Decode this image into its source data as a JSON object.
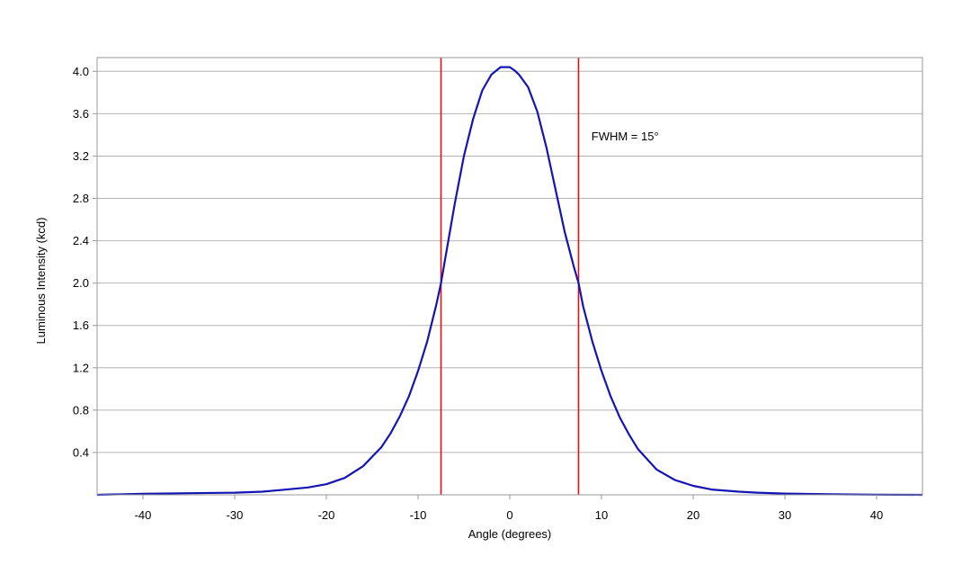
{
  "chart_data": {
    "type": "line",
    "title": "",
    "xlabel": "Angle (degrees)",
    "ylabel": "Luminous Intensity (kcd)",
    "xlim": [
      -45,
      45
    ],
    "ylim": [
      0,
      4.13
    ],
    "x_ticks": [
      -40,
      -30,
      -20,
      -10,
      0,
      10,
      20,
      30,
      40
    ],
    "x_tick_labels": [
      "-40",
      "-30",
      "-20",
      "-10",
      "0",
      "10",
      "20",
      "30",
      "40"
    ],
    "y_ticks": [
      0.4,
      0.8,
      1.2,
      1.6,
      2.0,
      2.4,
      2.8,
      3.2,
      3.6,
      4.0
    ],
    "y_tick_labels": [
      "0.4",
      "0.8",
      "1.2",
      "1.6",
      "2.0",
      "2.4",
      "2.8",
      "3.2",
      "3.6",
      "4.0"
    ],
    "grid": "horizontal",
    "legend": "none",
    "series": [
      {
        "color": "#1414b4",
        "x": [
          -45,
          -40,
          -35,
          -30,
          -27,
          -25,
          -22,
          -20,
          -18,
          -16,
          -14,
          -13,
          -12,
          -11,
          -10,
          -9,
          -8,
          -7.5,
          -7,
          -6,
          -5,
          -4,
          -3,
          -2,
          -1,
          0,
          0.5,
          1,
          2,
          3,
          4,
          5,
          6,
          7,
          7.5,
          8,
          9,
          10,
          11,
          12,
          13,
          14,
          16,
          18,
          20,
          22,
          25,
          27,
          30,
          35,
          40,
          45
        ],
        "y": [
          0.0,
          0.01,
          0.015,
          0.02,
          0.03,
          0.045,
          0.07,
          0.1,
          0.16,
          0.27,
          0.45,
          0.58,
          0.74,
          0.93,
          1.17,
          1.45,
          1.8,
          2.0,
          2.25,
          2.75,
          3.2,
          3.55,
          3.82,
          3.97,
          4.04,
          4.04,
          4.01,
          3.97,
          3.85,
          3.62,
          3.28,
          2.88,
          2.48,
          2.15,
          2.0,
          1.78,
          1.45,
          1.17,
          0.93,
          0.73,
          0.57,
          0.43,
          0.24,
          0.14,
          0.085,
          0.05,
          0.03,
          0.02,
          0.012,
          0.005,
          0.002,
          0.0
        ]
      }
    ],
    "reference_lines": [
      {
        "orientation": "vertical",
        "x": -7.5,
        "color": "#e01010"
      },
      {
        "orientation": "vertical",
        "x": 7.5,
        "color": "#e01010"
      }
    ],
    "annotations": [
      {
        "text": "FWHM = 15°",
        "x": 8.9,
        "y": 3.35
      }
    ]
  }
}
